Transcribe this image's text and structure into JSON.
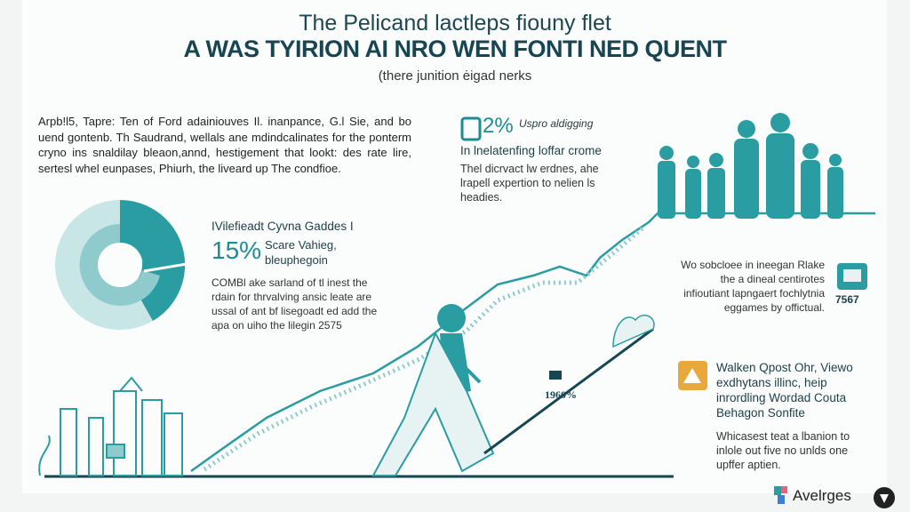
{
  "header": {
    "title": "The Pelicand lactleps fiouny flet",
    "headline": "A WAS TYIRION AI NRO WEN FONTI NED QUENT",
    "subtitle": "(there junition ėigad nerks"
  },
  "intro": {
    "text": "Arpb!l5, Tapre: Ten of Ford adainiouves Il. inanpance, G.l Sie, and bo uend gontenb. Th Saudrand, wellals ane mdindcalinates for the ponterm cryno ins snaldilay bleaon,annd, hestigement that lookt: des rate lire, sertesl whel eunpases, Phiurh, the liveard up The condfioe."
  },
  "stat_top": {
    "value": "2%",
    "label": "Uspro aldigging",
    "heading": "In lnelatenfing loffar crome",
    "body": "Thel dicrvact lw erdnes, ahe lrapell expertion to nelien ls headies."
  },
  "donut_block": {
    "heading": "IVilefieadt Cyvna Gaddes I",
    "value": "15%",
    "label1": "Scare Vahieg,",
    "label2": "bleuphegoin",
    "body": "COMBl ake sarland of tl inest the rdain for thrvalving ansic leate are ussal of ant bf lisegoadt ed add the apa on uiho the lilegin 2575",
    "donut": {
      "primary_fraction": 0.6,
      "colors": [
        "#2a9da3",
        "#8fcbcc",
        "#c9e6e6"
      ]
    }
  },
  "right_mid": {
    "body": "Wo sobcloee in ineegan Rlake the a dineal centirotes infioutiant lapngaert fochlytnia eggames by offictual.",
    "value": "7567"
  },
  "right_bottom": {
    "heading": "Walken Qpost Ohr, Viewo exdhytans illinc, heip inrordling Wordad Couta Behagon Sonfite",
    "body": "Whicasest teat a lbanion to inlole out five no unlds one upffer aptien."
  },
  "chart_label": "1960%",
  "brand": {
    "name": "Avelrges"
  },
  "colors": {
    "accent": "#1e8c93",
    "dark": "#174652",
    "orange": "#e9a93a"
  }
}
